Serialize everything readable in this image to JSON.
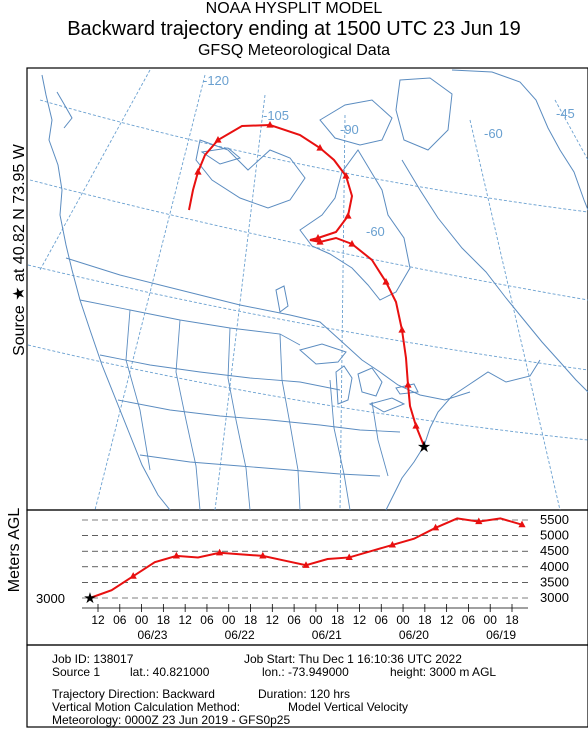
{
  "header": {
    "line1": "NOAA HYSPLIT MODEL",
    "line2": "Backward trajectory ending at 1500 UTC 23 Jun 19",
    "line3": "GFSQ Meteorological Data"
  },
  "side_label": "Source ★ at   40.82 N   73.95 W",
  "map": {
    "longitude_labels": [
      "-120",
      "-105",
      "-90",
      "-60",
      "-45",
      "-60"
    ],
    "colors": {
      "trajectory": "#e81010",
      "boundaries": "#5b8cc0",
      "grid": "#6aa0d0"
    }
  },
  "height_panel": {
    "ylabel": "Meters AGL",
    "y_ticks": [
      "5500",
      "5000",
      "4500",
      "4000",
      "3500",
      "3000"
    ],
    "source_value": "3000",
    "hour_ticks": [
      "12",
      "06",
      "00",
      "18",
      "12",
      "06",
      "00",
      "18",
      "12",
      "06",
      "00",
      "18",
      "12",
      "06",
      "00",
      "18",
      "12",
      "06",
      "00",
      "18"
    ],
    "date_labels": [
      "06/23",
      "06/22",
      "06/21",
      "06/20",
      "06/19"
    ]
  },
  "chart_data": {
    "type": "line",
    "title": "",
    "xlabel": "",
    "ylabel": "Meters AGL",
    "ylim": [
      3000,
      5500
    ],
    "x": [
      0,
      6,
      12,
      18,
      24,
      30,
      36,
      42,
      48,
      54,
      60,
      66,
      72,
      78,
      84,
      90,
      96,
      102,
      108,
      114,
      120
    ],
    "values": [
      3000,
      3250,
      3700,
      4150,
      4350,
      4300,
      4450,
      4400,
      4350,
      4200,
      4050,
      4250,
      4300,
      4500,
      4700,
      4900,
      5250,
      5550,
      5450,
      5550,
      5350
    ],
    "series": [
      {
        "name": "",
        "values": [
          3000,
          3250,
          3700,
          4150,
          4350,
          4300,
          4450,
          4400,
          4350,
          4200,
          4050,
          4250,
          4300,
          4500,
          4700,
          4900,
          5250,
          5550,
          5450,
          5550,
          5350
        ]
      }
    ]
  },
  "info": {
    "job_id": "Job ID: 138017",
    "job_start": "Job Start: Thu Dec  1 16:10:36 UTC 2022",
    "source": "Source 1",
    "lat": "lat.: 40.821000",
    "lon": "lon.: -73.949000",
    "height": "height: 3000 m AGL",
    "direction": "Trajectory Direction: Backward",
    "duration": "Duration: 120 hrs",
    "vertical_label": "Vertical Motion Calculation Method:",
    "vertical_value": "Model Vertical Velocity",
    "meteorology": "Meteorology: 0000Z 23 Jun 2019 - GFS0p25"
  }
}
